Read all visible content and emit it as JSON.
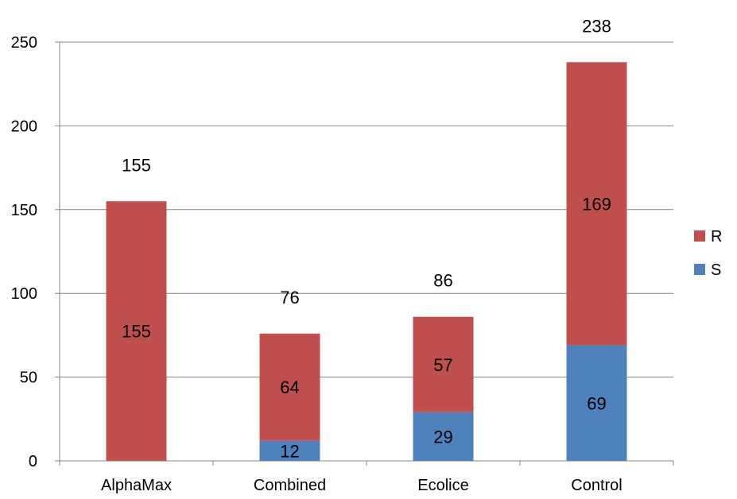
{
  "chart_data": {
    "type": "bar",
    "stacked": true,
    "categories": [
      "AlphaMax",
      "Combined",
      "Ecolice",
      "Control"
    ],
    "series": [
      {
        "name": "S",
        "color": "#4F81BD",
        "values": [
          0,
          12,
          29,
          69
        ]
      },
      {
        "name": "R",
        "color": "#C0504D",
        "values": [
          155,
          64,
          57,
          169
        ]
      }
    ],
    "totals": [
      155,
      76,
      86,
      238
    ],
    "data_labels": {
      "S": [
        "",
        "12",
        "29",
        "69"
      ],
      "R": [
        "155",
        "64",
        "57",
        "169"
      ],
      "totals": [
        "155",
        "76",
        "86",
        "238"
      ]
    },
    "ylim": [
      0,
      250
    ],
    "yticks": [
      0,
      50,
      100,
      150,
      200,
      250
    ],
    "grid": true,
    "legend_position": "right",
    "legend_order": [
      "R",
      "S"
    ],
    "title": "",
    "xlabel": "",
    "ylabel": ""
  }
}
